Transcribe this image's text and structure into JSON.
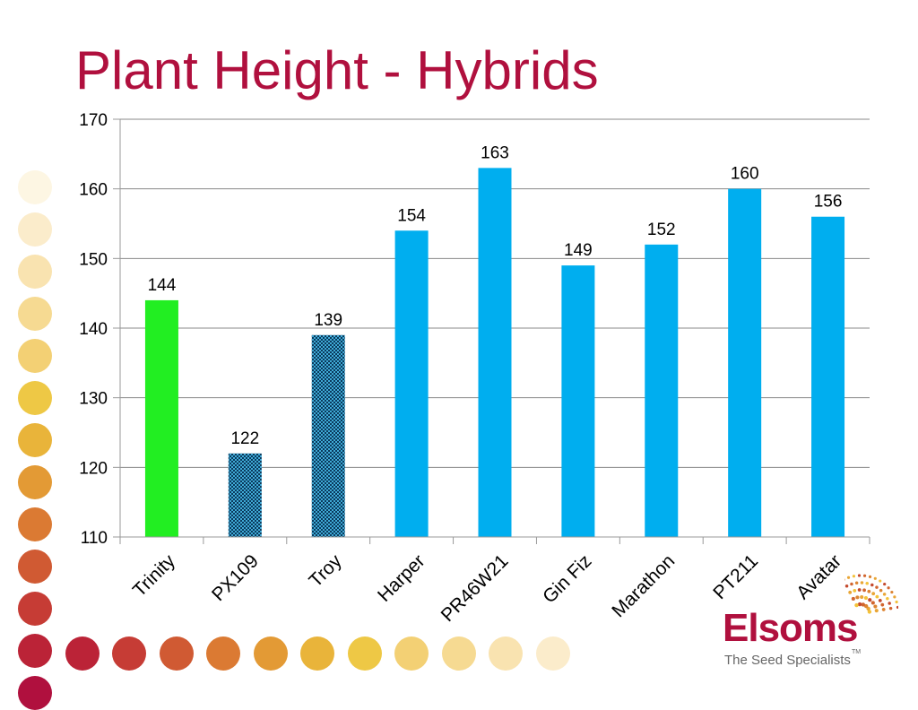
{
  "slide": {
    "title": "Plant Height - Hybrids"
  },
  "chart_data": {
    "type": "bar",
    "title": "",
    "xlabel": "",
    "ylabel": "",
    "categories": [
      "Trinity",
      "PX109",
      "Troy",
      "Harper",
      "PR46W21",
      "Gin Fiz",
      "Marathon",
      "PT211",
      "Avatar"
    ],
    "values": [
      144,
      122,
      139,
      154,
      163,
      149,
      152,
      160,
      156
    ],
    "bar_styles": [
      "green",
      "checkered",
      "checkered",
      "blue",
      "blue",
      "blue",
      "blue",
      "blue",
      "blue"
    ],
    "ylim": [
      110,
      170
    ],
    "yticks": [
      110,
      120,
      130,
      140,
      150,
      160,
      170
    ],
    "grid": true,
    "data_labels": true,
    "legend": "none"
  },
  "colors": {
    "title": "#b0103e",
    "green_bar": "#22ee22",
    "blue_bar": "#00aeef",
    "checkered_dark": "#0a3a5c",
    "checkered_light": "#3fa9d6",
    "grid": "#888888",
    "axis": "#999999",
    "text": "#000000"
  },
  "decoration": {
    "dot_colors": [
      "#fdf6e3",
      "#fbeccb",
      "#f9e3b0",
      "#f6da92",
      "#f3d074",
      "#eec845",
      "#e9b43a",
      "#e39a35",
      "#db7a33",
      "#d05a33",
      "#c63c35",
      "#bb2337",
      "#b0103e"
    ]
  },
  "logo": {
    "name": "Elsoms",
    "tagline": "The Seed Specialists",
    "trademark": "TM"
  }
}
